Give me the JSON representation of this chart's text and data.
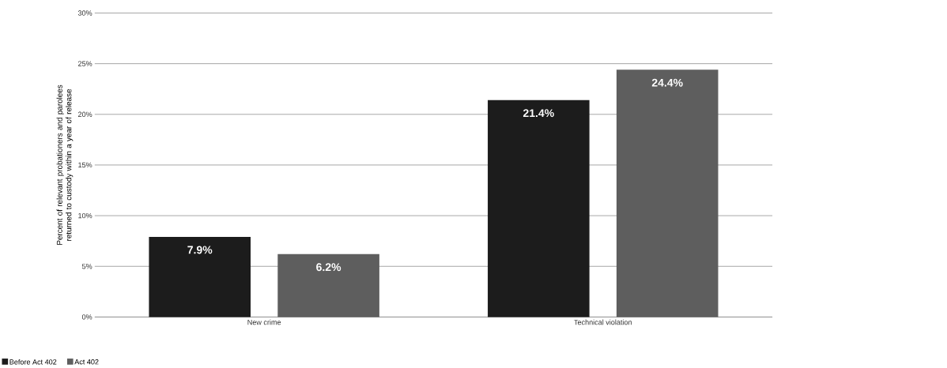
{
  "chart_data": {
    "type": "bar",
    "ylabel": "Percent of relevant probationers and parolees returned to custody within a year of release",
    "categories": [
      "New crime",
      "Technical violation"
    ],
    "series": [
      {
        "name": "Before Act 402",
        "color": "#1c1c1c",
        "values": [
          7.9,
          21.4
        ],
        "value_labels": [
          "7.9%",
          "21.4%"
        ]
      },
      {
        "name": "Act 402",
        "color": "#5e5e5e",
        "values": [
          6.2,
          24.4
        ],
        "value_labels": [
          "6.2%",
          "24.4%"
        ]
      }
    ],
    "ylim": [
      0,
      30
    ],
    "yticks": [
      {
        "value": 0,
        "label": "0%"
      },
      {
        "value": 5,
        "label": "5%"
      },
      {
        "value": 10,
        "label": "10%"
      },
      {
        "value": 15,
        "label": "15%"
      },
      {
        "value": 20,
        "label": "20%"
      },
      {
        "value": 25,
        "label": "25%"
      },
      {
        "value": 30,
        "label": "30%"
      }
    ],
    "grid": "y",
    "legend": "bottom left"
  }
}
